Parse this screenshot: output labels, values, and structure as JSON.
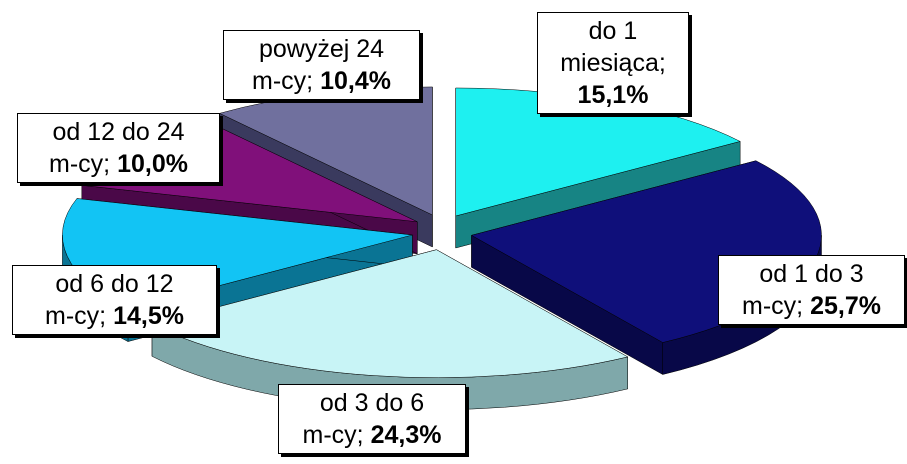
{
  "chart_data": {
    "type": "pie",
    "title": "",
    "slices": [
      {
        "label_line1": "do 1",
        "label_line2": "miesiąca;",
        "value": 15.1,
        "value_label": "15,1%",
        "top_color": "#1ef0f0",
        "side_color": "#178484"
      },
      {
        "label_line1": "od 1 do 3",
        "label_line2": "m-cy;",
        "value": 25.7,
        "value_label": "25,7%",
        "top_color": "#0f0f7a",
        "side_color": "#080848"
      },
      {
        "label_line1": "od 3 do 6",
        "label_line2": "m-cy;",
        "value": 24.3,
        "value_label": "24,3%",
        "top_color": "#c8f4f6",
        "side_color": "#7fa8aa"
      },
      {
        "label_line1": "od 6 do 12",
        "label_line2": "m-cy;",
        "value": 14.5,
        "value_label": "14,5%",
        "top_color": "#12c4f4",
        "side_color": "#0a7494"
      },
      {
        "label_line1": "od 12 do 24",
        "label_line2": "m-cy;",
        "value": 10.0,
        "value_label": "10,0%",
        "top_color": "#80107a",
        "side_color": "#4a0848"
      },
      {
        "label_line1": "powyżej 24",
        "label_line2": "m-cy;",
        "value": 10.4,
        "value_label": "10,4%",
        "top_color": "#70709e",
        "side_color": "#3a3a5e"
      }
    ]
  }
}
